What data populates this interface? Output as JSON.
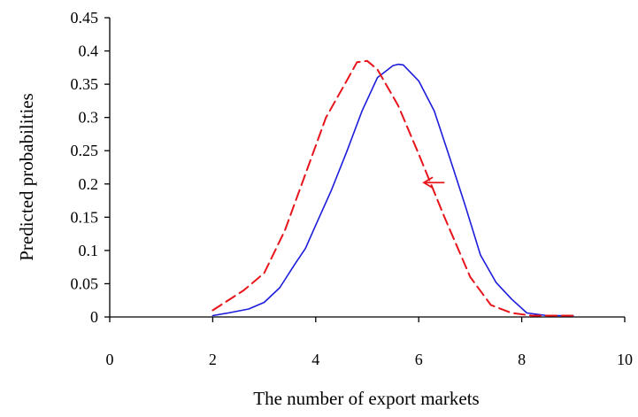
{
  "chart_data": {
    "type": "line",
    "title": "",
    "xlabel": "The number of export markets",
    "ylabel": "Predicted probabilities",
    "xlim": [
      0,
      10
    ],
    "ylim": [
      0,
      0.45
    ],
    "x_ticks": [
      "0",
      "2",
      "4",
      "6",
      "8",
      "10"
    ],
    "y_ticks": [
      "0",
      "0.05",
      "0.1",
      "0.15",
      "0.2",
      "0.25",
      "0.3",
      "0.35",
      "0.4",
      "0.45"
    ],
    "grid": false,
    "legend": "none",
    "annotations": [
      {
        "type": "arrow",
        "direction": "left",
        "from": [
          6.5,
          0.202
        ],
        "to": [
          6.1,
          0.202
        ],
        "color": "#e8141c"
      }
    ],
    "series": [
      {
        "style": "solid",
        "color": "#1c1cdc",
        "x": [
          2.0,
          2.3,
          2.7,
          3.0,
          3.3,
          3.6,
          3.8,
          4.0,
          4.3,
          4.6,
          4.9,
          5.2,
          5.5,
          5.6,
          5.7,
          6.0,
          6.3,
          6.6,
          6.9,
          7.2,
          7.5,
          7.8,
          8.1,
          8.5,
          9.0
        ],
        "y": [
          0.002,
          0.006,
          0.012,
          0.022,
          0.044,
          0.08,
          0.103,
          0.138,
          0.19,
          0.248,
          0.31,
          0.36,
          0.378,
          0.38,
          0.379,
          0.355,
          0.31,
          0.24,
          0.168,
          0.093,
          0.052,
          0.027,
          0.006,
          0.002,
          0.002
        ]
      },
      {
        "style": "dashed",
        "color": "#e8141c",
        "x": [
          2.0,
          2.2,
          2.6,
          3.0,
          3.4,
          3.8,
          4.2,
          4.6,
          4.8,
          5.0,
          5.2,
          5.6,
          6.0,
          6.5,
          7.0,
          7.4,
          7.8,
          8.2,
          8.5,
          9.0
        ],
        "y": [
          0.01,
          0.02,
          0.04,
          0.066,
          0.13,
          0.215,
          0.3,
          0.355,
          0.383,
          0.385,
          0.372,
          0.318,
          0.245,
          0.15,
          0.06,
          0.018,
          0.006,
          0.002,
          0.002,
          0.002
        ]
      }
    ]
  }
}
